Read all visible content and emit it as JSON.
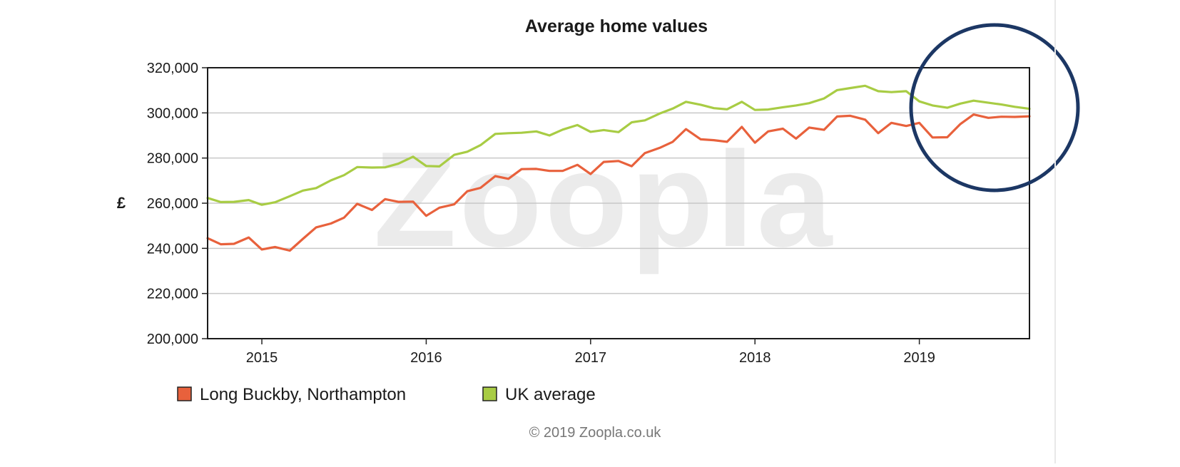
{
  "chart_data": {
    "type": "line",
    "title": "Average home values",
    "ylabel": "£",
    "ylim": [
      200000,
      320000
    ],
    "yticks": [
      "200,000",
      "220,000",
      "240,000",
      "260,000",
      "280,000",
      "300,000",
      "320,000"
    ],
    "xlim": [
      2014.67,
      2019.67
    ],
    "xticks": [
      "2015",
      "2016",
      "2017",
      "2018",
      "2019"
    ],
    "grid": true,
    "legend_position": "bottom-left",
    "series": [
      {
        "name": "Long Buckby, Northampton",
        "color": "#e8613c",
        "x": [
          2014.67,
          2014.75,
          2014.83,
          2014.92,
          2015.0,
          2015.08,
          2015.17,
          2015.25,
          2015.33,
          2015.42,
          2015.5,
          2015.58,
          2015.67,
          2015.75,
          2015.83,
          2015.92,
          2016.0,
          2016.08,
          2016.17,
          2016.25,
          2016.33,
          2016.42,
          2016.5,
          2016.58,
          2016.67,
          2016.75,
          2016.83,
          2016.92,
          2017.0,
          2017.08,
          2017.17,
          2017.25,
          2017.33,
          2017.42,
          2017.5,
          2017.58,
          2017.67,
          2017.75,
          2017.83,
          2017.92,
          2018.0,
          2018.08,
          2018.17,
          2018.25,
          2018.33,
          2018.42,
          2018.5,
          2018.58,
          2018.67,
          2018.75,
          2018.83,
          2018.92,
          2019.0,
          2019.08,
          2019.17,
          2019.25,
          2019.33,
          2019.42,
          2019.5,
          2019.58,
          2019.67
        ],
        "values": [
          244500,
          241800,
          242000,
          244800,
          239500,
          240600,
          239000,
          244200,
          249300,
          251000,
          253600,
          259700,
          257000,
          261800,
          260600,
          260700,
          254400,
          258000,
          259500,
          265300,
          266800,
          272000,
          270800,
          275100,
          275200,
          274300,
          274300,
          277000,
          272900,
          278300,
          278700,
          276400,
          282200,
          284500,
          287200,
          292800,
          288300,
          287900,
          287200,
          293800,
          286800,
          291800,
          293000,
          288600,
          293500,
          292500,
          298400,
          298700,
          297000,
          291000,
          295600,
          294200,
          295600,
          289100,
          289200,
          295100,
          299300,
          297800,
          298300,
          298200,
          298500
        ]
      },
      {
        "name": "UK average",
        "color": "#a8cc44",
        "x": [
          2014.67,
          2014.75,
          2014.83,
          2014.92,
          2015.0,
          2015.08,
          2015.17,
          2015.25,
          2015.33,
          2015.42,
          2015.5,
          2015.58,
          2015.67,
          2015.75,
          2015.83,
          2015.92,
          2016.0,
          2016.08,
          2016.17,
          2016.25,
          2016.33,
          2016.42,
          2016.5,
          2016.58,
          2016.67,
          2016.75,
          2016.83,
          2016.92,
          2017.0,
          2017.08,
          2017.17,
          2017.25,
          2017.33,
          2017.42,
          2017.5,
          2017.58,
          2017.67,
          2017.75,
          2017.83,
          2017.92,
          2018.0,
          2018.08,
          2018.17,
          2018.25,
          2018.33,
          2018.42,
          2018.5,
          2018.58,
          2018.67,
          2018.75,
          2018.83,
          2018.92,
          2019.0,
          2019.08,
          2019.17,
          2019.25,
          2019.33,
          2019.42,
          2019.5,
          2019.58,
          2019.67
        ],
        "values": [
          262300,
          260500,
          260600,
          261400,
          259300,
          260400,
          263100,
          265600,
          266700,
          270100,
          272400,
          276000,
          275800,
          275900,
          277500,
          280600,
          276500,
          276300,
          281400,
          282800,
          285700,
          290700,
          291000,
          291200,
          291800,
          290000,
          292600,
          294600,
          291600,
          292400,
          291500,
          295800,
          296700,
          299700,
          301900,
          304900,
          303600,
          302100,
          301600,
          304900,
          301300,
          301500,
          302500,
          303300,
          304300,
          306400,
          310100,
          311000,
          312000,
          309600,
          309200,
          309600,
          305100,
          303300,
          302300,
          304100,
          305400,
          304500,
          303700,
          302700,
          301800
        ]
      }
    ],
    "annotations": [
      "© 2019 Zoopla.co.uk"
    ],
    "watermark": "Zoopla",
    "highlight": {
      "shape": "circle",
      "color": "#1c3764"
    }
  }
}
